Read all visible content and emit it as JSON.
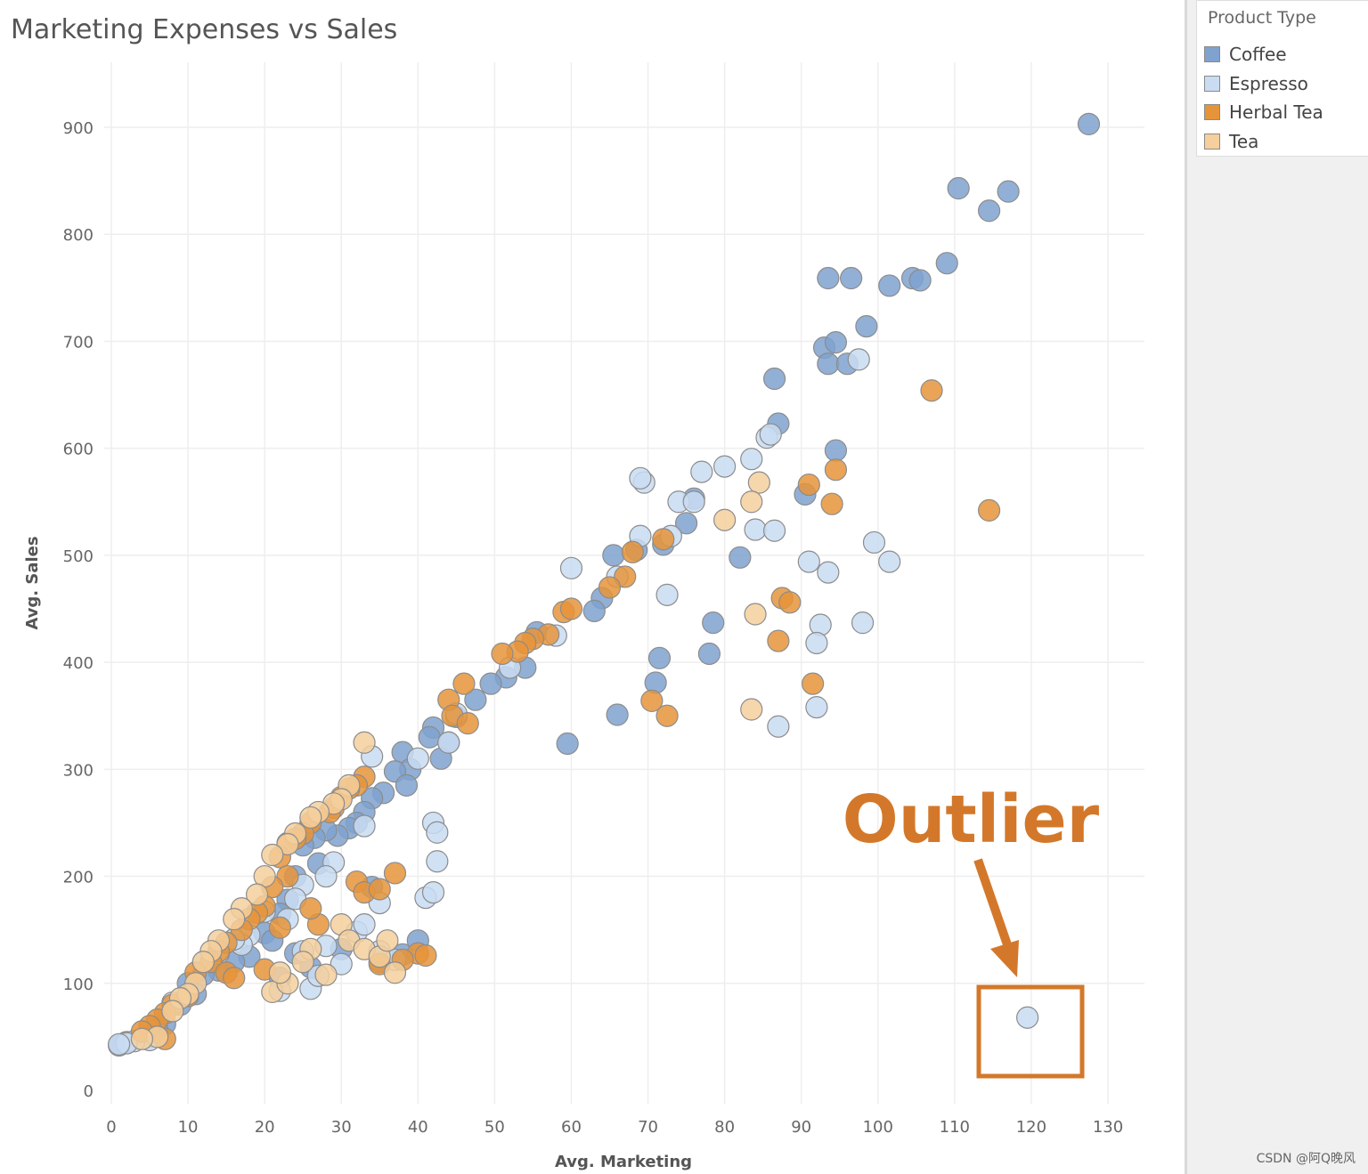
{
  "chart_data": {
    "type": "scatter",
    "title": "Marketing Expenses vs Sales",
    "xlabel": "Avg. Marketing",
    "ylabel": "Avg. Sales",
    "xlim": [
      0,
      135
    ],
    "ylim": [
      -10,
      950
    ],
    "xticks": [
      0,
      10,
      20,
      30,
      40,
      50,
      60,
      70,
      80,
      90,
      100,
      110,
      120,
      130
    ],
    "yticks": [
      0,
      100,
      200,
      300,
      400,
      500,
      600,
      700,
      800,
      900
    ],
    "grid": true,
    "legend": {
      "title": "Product Type",
      "position": "right",
      "entries": [
        {
          "name": "Coffee",
          "color": "#7fa2cf"
        },
        {
          "name": "Espresso",
          "color": "#c9dcf2"
        },
        {
          "name": "Herbal Tea",
          "color": "#e69439"
        },
        {
          "name": "Tea",
          "color": "#f5cf9c"
        }
      ]
    },
    "series": [
      {
        "name": "Coffee",
        "color": "#7fa2cf",
        "points": [
          [
            127.5,
            903
          ],
          [
            110.5,
            843
          ],
          [
            114.5,
            822
          ],
          [
            117,
            840
          ],
          [
            93.5,
            759
          ],
          [
            96.5,
            759
          ],
          [
            101.5,
            752
          ],
          [
            104.5,
            759
          ],
          [
            105.5,
            757
          ],
          [
            109,
            773
          ],
          [
            98.5,
            714
          ],
          [
            93,
            694
          ],
          [
            94.5,
            699
          ],
          [
            93.5,
            679
          ],
          [
            96,
            679
          ],
          [
            86.5,
            665
          ],
          [
            87,
            623
          ],
          [
            94.5,
            598
          ],
          [
            90.5,
            557
          ],
          [
            82,
            498
          ],
          [
            78.5,
            437
          ],
          [
            78,
            408
          ],
          [
            71.5,
            404
          ],
          [
            71,
            381
          ],
          [
            66,
            351
          ],
          [
            59.5,
            324
          ],
          [
            68.5,
            505
          ],
          [
            72,
            510
          ],
          [
            75,
            530
          ],
          [
            76,
            553
          ],
          [
            65.5,
            500
          ],
          [
            64,
            460
          ],
          [
            63,
            448
          ],
          [
            55.5,
            428
          ],
          [
            54,
            395
          ],
          [
            51.5,
            386
          ],
          [
            49.5,
            380
          ],
          [
            47.5,
            365
          ],
          [
            45,
            349
          ],
          [
            44,
            325
          ],
          [
            42,
            339
          ],
          [
            41.5,
            330
          ],
          [
            43,
            310
          ],
          [
            38,
            316
          ],
          [
            39,
            300
          ],
          [
            37,
            298
          ],
          [
            38.5,
            285
          ],
          [
            35.5,
            278
          ],
          [
            34,
            273
          ],
          [
            33,
            260
          ],
          [
            32,
            250
          ],
          [
            31,
            245
          ],
          [
            29.5,
            238
          ],
          [
            28,
            243
          ],
          [
            26.5,
            236
          ],
          [
            25,
            229
          ],
          [
            27,
            212
          ],
          [
            24,
            200
          ],
          [
            23,
            178
          ],
          [
            22,
            165
          ],
          [
            20,
            147
          ],
          [
            21,
            140
          ],
          [
            18,
            125
          ],
          [
            16,
            120
          ],
          [
            14,
            112
          ],
          [
            12,
            108
          ],
          [
            10,
            100
          ],
          [
            11,
            90
          ],
          [
            9,
            80
          ],
          [
            7,
            62
          ],
          [
            6,
            57
          ],
          [
            5,
            50
          ],
          [
            2,
            45
          ],
          [
            1,
            42
          ],
          [
            34,
            190
          ],
          [
            24,
            128
          ],
          [
            26,
            115
          ],
          [
            22,
            105
          ],
          [
            35,
            120
          ],
          [
            38,
            127
          ],
          [
            40,
            140
          ],
          [
            30,
            132
          ]
        ]
      },
      {
        "name": "Espresso",
        "color": "#c9dcf2",
        "points": [
          [
            119.5,
            68
          ],
          [
            69.5,
            568
          ],
          [
            69,
            572
          ],
          [
            77,
            578
          ],
          [
            80,
            583
          ],
          [
            83.5,
            590
          ],
          [
            85.5,
            610
          ],
          [
            86,
            613
          ],
          [
            74,
            550
          ],
          [
            76,
            550
          ],
          [
            73,
            518
          ],
          [
            69,
            518
          ],
          [
            60,
            488
          ],
          [
            66,
            480
          ],
          [
            72.5,
            463
          ],
          [
            84,
            524
          ],
          [
            86.5,
            523
          ],
          [
            91,
            494
          ],
          [
            93.5,
            484
          ],
          [
            99.5,
            512
          ],
          [
            101.5,
            494
          ],
          [
            97.5,
            683
          ],
          [
            92.5,
            435
          ],
          [
            92,
            418
          ],
          [
            92,
            358
          ],
          [
            87,
            340
          ],
          [
            98,
            437
          ],
          [
            58,
            425
          ],
          [
            52,
            395
          ],
          [
            45,
            352
          ],
          [
            44,
            325
          ],
          [
            40,
            310
          ],
          [
            42,
            250
          ],
          [
            42.5,
            241
          ],
          [
            42.5,
            214
          ],
          [
            41,
            180
          ],
          [
            42,
            185
          ],
          [
            35,
            175
          ],
          [
            33,
            247
          ],
          [
            34,
            312
          ],
          [
            29,
            213
          ],
          [
            28,
            200
          ],
          [
            25,
            192
          ],
          [
            24,
            179
          ],
          [
            20,
            167
          ],
          [
            18,
            145
          ],
          [
            17,
            136
          ],
          [
            16,
            141
          ],
          [
            14,
            128
          ],
          [
            12,
            120
          ],
          [
            8,
            82
          ],
          [
            5,
            47
          ],
          [
            3,
            46
          ],
          [
            2,
            44
          ],
          [
            1,
            43
          ],
          [
            22,
            93
          ],
          [
            26,
            95
          ],
          [
            27,
            107
          ],
          [
            32,
            148
          ],
          [
            33,
            155
          ],
          [
            35,
            130
          ],
          [
            37,
            122
          ],
          [
            30,
            118
          ],
          [
            28,
            135
          ],
          [
            25,
            130
          ],
          [
            23,
            160
          ]
        ]
      },
      {
        "name": "Herbal Tea",
        "color": "#e69439",
        "points": [
          [
            107,
            654
          ],
          [
            114.5,
            542
          ],
          [
            91,
            566
          ],
          [
            94.5,
            580
          ],
          [
            94,
            548
          ],
          [
            87.5,
            460
          ],
          [
            88.5,
            456
          ],
          [
            87,
            420
          ],
          [
            91.5,
            380
          ],
          [
            70.5,
            364
          ],
          [
            72.5,
            350
          ],
          [
            67,
            480
          ],
          [
            65,
            470
          ],
          [
            68,
            503
          ],
          [
            72,
            515
          ],
          [
            59,
            447
          ],
          [
            60,
            450
          ],
          [
            57,
            426
          ],
          [
            55,
            422
          ],
          [
            54,
            418
          ],
          [
            53,
            410
          ],
          [
            51,
            408
          ],
          [
            46,
            380
          ],
          [
            44,
            365
          ],
          [
            44.5,
            350
          ],
          [
            46.5,
            343
          ],
          [
            33,
            293
          ],
          [
            32,
            285
          ],
          [
            31,
            282
          ],
          [
            30,
            274
          ],
          [
            29,
            264
          ],
          [
            28.5,
            260
          ],
          [
            26,
            250
          ],
          [
            25,
            240
          ],
          [
            24,
            235
          ],
          [
            23,
            231
          ],
          [
            22,
            218
          ],
          [
            23,
            200
          ],
          [
            21,
            190
          ],
          [
            20,
            172
          ],
          [
            19,
            166
          ],
          [
            18,
            160
          ],
          [
            17,
            150
          ],
          [
            15,
            138
          ],
          [
            14,
            130
          ],
          [
            13,
            120
          ],
          [
            11,
            110
          ],
          [
            10,
            88
          ],
          [
            8,
            80
          ],
          [
            7,
            72
          ],
          [
            6,
            66
          ],
          [
            5,
            60
          ],
          [
            4,
            55
          ],
          [
            7,
            48
          ],
          [
            32,
            195
          ],
          [
            33,
            185
          ],
          [
            35,
            188
          ],
          [
            37,
            203
          ],
          [
            40,
            128
          ],
          [
            41,
            126
          ],
          [
            38,
            122
          ],
          [
            35,
            118
          ],
          [
            27,
            155
          ],
          [
            26,
            170
          ],
          [
            22,
            152
          ],
          [
            20,
            113
          ],
          [
            15,
            110
          ],
          [
            16,
            105
          ]
        ]
      },
      {
        "name": "Tea",
        "color": "#f5cf9c",
        "points": [
          [
            84.5,
            568
          ],
          [
            83.5,
            550
          ],
          [
            80,
            533
          ],
          [
            84,
            445
          ],
          [
            83.5,
            356
          ],
          [
            33,
            325
          ],
          [
            31,
            285
          ],
          [
            30,
            272
          ],
          [
            29,
            268
          ],
          [
            27,
            260
          ],
          [
            26,
            255
          ],
          [
            24,
            240
          ],
          [
            23,
            230
          ],
          [
            21,
            220
          ],
          [
            20,
            200
          ],
          [
            19,
            183
          ],
          [
            17,
            170
          ],
          [
            16,
            160
          ],
          [
            14,
            140
          ],
          [
            13,
            130
          ],
          [
            12,
            120
          ],
          [
            11,
            100
          ],
          [
            10,
            90
          ],
          [
            9,
            86
          ],
          [
            8,
            74
          ],
          [
            6,
            50
          ],
          [
            4,
            48
          ],
          [
            21,
            92
          ],
          [
            23,
            100
          ],
          [
            26,
            132
          ],
          [
            30,
            155
          ],
          [
            31,
            140
          ],
          [
            33,
            132
          ],
          [
            35,
            125
          ],
          [
            37,
            110
          ],
          [
            36,
            140
          ],
          [
            25,
            120
          ],
          [
            22,
            110
          ],
          [
            28,
            108
          ]
        ]
      }
    ],
    "annotation": {
      "text": "Outlier",
      "target": [
        119.5,
        68
      ],
      "color": "#d3782a"
    }
  },
  "watermark": "CSDN @阿Q晚风"
}
